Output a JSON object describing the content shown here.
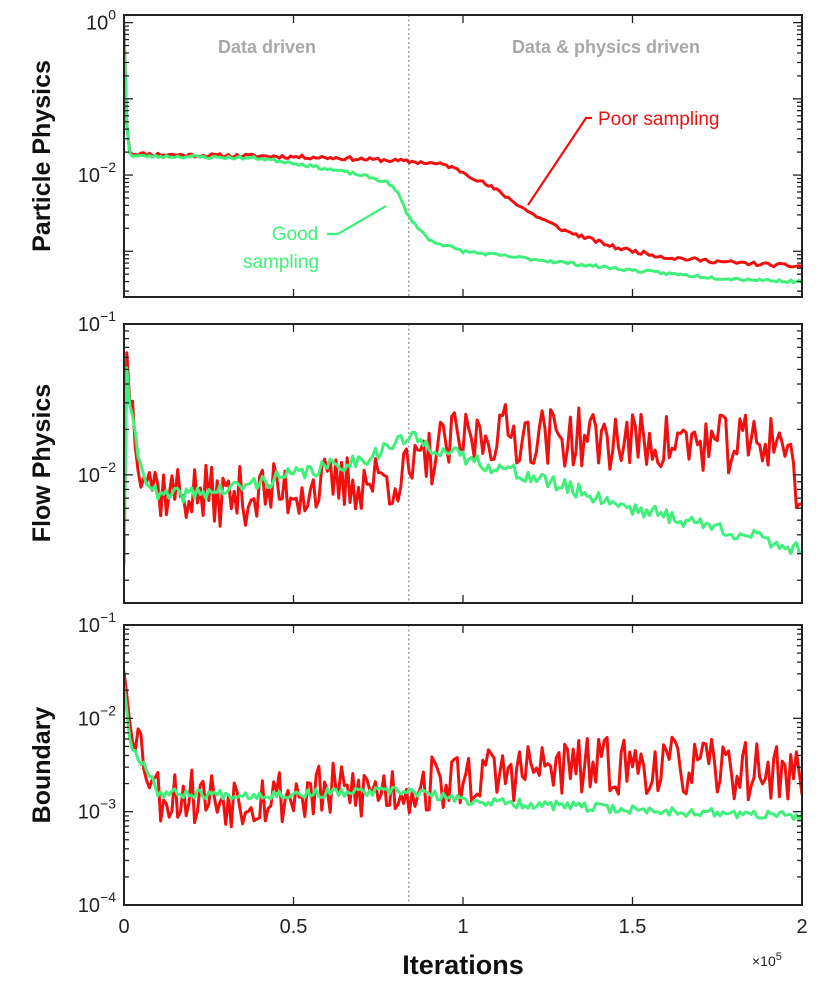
{
  "chart_data": {
    "type": "line",
    "shared_x": {
      "label": "Iterations",
      "multiplier": "×10",
      "multiplier_exp": "5",
      "range": [
        0,
        2
      ],
      "ticks": [
        {
          "v": 0,
          "label": "0"
        },
        {
          "v": 0.5,
          "label": "0.5"
        },
        {
          "v": 1,
          "label": "1"
        },
        {
          "v": 1.5,
          "label": "1.5"
        },
        {
          "v": 2,
          "label": "2"
        }
      ]
    },
    "phase_boundary_x": 0.84,
    "phase_labels": [
      "Data driven",
      "Data & physics driven"
    ],
    "series_colors": {
      "poor": "#f01010",
      "good": "#3ff07a"
    },
    "annotations": {
      "poor_label": "Poor sampling",
      "good_label_1": "Good",
      "good_label_2": "sampling"
    },
    "panels": [
      {
        "ylabel": "Particle Physics",
        "scale": "log",
        "ylim_exp": [
          -3.6,
          0.1
        ],
        "yticks": [
          {
            "exp": 0,
            "base": "10",
            "sup": "0"
          },
          {
            "exp": -2,
            "base": "10",
            "sup": "−2"
          }
        ],
        "series": [
          {
            "name": "Poor sampling",
            "key": "poor",
            "seed": 11,
            "noise": 0.025,
            "knots": [
              [
                0,
                -0.05
              ],
              [
                0.003,
                -0.5
              ],
              [
                0.01,
                -1.6
              ],
              [
                0.02,
                -1.72
              ],
              [
                0.2,
                -1.74
              ],
              [
                0.4,
                -1.75
              ],
              [
                0.5,
                -1.76
              ],
              [
                0.6,
                -1.77
              ],
              [
                0.7,
                -1.79
              ],
              [
                0.8,
                -1.81
              ],
              [
                0.9,
                -1.84
              ],
              [
                0.95,
                -1.87
              ],
              [
                1.0,
                -1.96
              ],
              [
                1.1,
                -2.2
              ],
              [
                1.2,
                -2.5
              ],
              [
                1.3,
                -2.73
              ],
              [
                1.45,
                -2.95
              ],
              [
                1.6,
                -3.08
              ],
              [
                1.8,
                -3.15
              ],
              [
                2.0,
                -3.2
              ]
            ]
          },
          {
            "name": "Good sampling",
            "key": "good",
            "seed": 23,
            "noise": 0.02,
            "knots": [
              [
                0,
                -0.05
              ],
              [
                0.003,
                -0.5
              ],
              [
                0.01,
                -1.6
              ],
              [
                0.02,
                -1.75
              ],
              [
                0.2,
                -1.76
              ],
              [
                0.4,
                -1.78
              ],
              [
                0.5,
                -1.84
              ],
              [
                0.6,
                -1.92
              ],
              [
                0.7,
                -2.0
              ],
              [
                0.78,
                -2.1
              ],
              [
                0.81,
                -2.25
              ],
              [
                0.84,
                -2.55
              ],
              [
                0.9,
                -2.85
              ],
              [
                1.0,
                -3.0
              ],
              [
                1.2,
                -3.1
              ],
              [
                1.5,
                -3.25
              ],
              [
                1.75,
                -3.35
              ],
              [
                2.0,
                -3.4
              ]
            ]
          }
        ]
      },
      {
        "ylabel": "Flow Physics",
        "scale": "log",
        "ylim_exp": [
          -2.85,
          -1.0
        ],
        "yticks": [
          {
            "exp": -1,
            "base": "10",
            "sup": "−1"
          },
          {
            "exp": -2,
            "base": "10",
            "sup": "−2"
          }
        ],
        "series": [
          {
            "name": "Poor sampling",
            "key": "poor",
            "seed": 37,
            "noise": 0.2,
            "knots": [
              [
                0,
                -2.6
              ],
              [
                0.003,
                -1.05
              ],
              [
                0.02,
                -1.5
              ],
              [
                0.05,
                -1.9
              ],
              [
                0.1,
                -2.1
              ],
              [
                0.3,
                -2.15
              ],
              [
                0.5,
                -2.1
              ],
              [
                0.7,
                -2.05
              ],
              [
                0.84,
                -2.0
              ],
              [
                0.95,
                -1.8
              ],
              [
                1.1,
                -1.72
              ],
              [
                1.5,
                -1.78
              ],
              [
                1.8,
                -1.8
              ],
              [
                1.95,
                -1.75
              ],
              [
                2.0,
                -2.3
              ]
            ]
          },
          {
            "name": "Good sampling",
            "key": "good",
            "seed": 41,
            "noise": 0.05,
            "knots": [
              [
                0,
                -2.6
              ],
              [
                0.003,
                -1.15
              ],
              [
                0.02,
                -1.6
              ],
              [
                0.05,
                -1.95
              ],
              [
                0.1,
                -2.15
              ],
              [
                0.3,
                -2.1
              ],
              [
                0.5,
                -2.0
              ],
              [
                0.7,
                -1.9
              ],
              [
                0.84,
                -1.75
              ],
              [
                0.95,
                -1.85
              ],
              [
                1.1,
                -1.95
              ],
              [
                1.3,
                -2.08
              ],
              [
                1.5,
                -2.22
              ],
              [
                1.75,
                -2.35
              ],
              [
                2.0,
                -2.5
              ]
            ]
          }
        ]
      },
      {
        "ylabel": "Boundary",
        "scale": "log",
        "ylim_exp": [
          -4.0,
          -1.0
        ],
        "yticks": [
          {
            "exp": -1,
            "base": "10",
            "sup": "−1"
          },
          {
            "exp": -2,
            "base": "10",
            "sup": "−2"
          },
          {
            "exp": -3,
            "base": "10",
            "sup": "−3"
          },
          {
            "exp": -4,
            "base": "10",
            "sup": "−4"
          }
        ],
        "series": [
          {
            "name": "Poor sampling",
            "key": "poor",
            "seed": 53,
            "noise": 0.32,
            "knots": [
              [
                0,
                -1.5
              ],
              [
                0.01,
                -1.8
              ],
              [
                0.05,
                -2.3
              ],
              [
                0.1,
                -2.8
              ],
              [
                0.3,
                -2.85
              ],
              [
                0.6,
                -2.8
              ],
              [
                0.84,
                -2.75
              ],
              [
                1.0,
                -2.65
              ],
              [
                1.2,
                -2.55
              ],
              [
                1.5,
                -2.5
              ],
              [
                1.8,
                -2.55
              ],
              [
                2.0,
                -2.6
              ]
            ]
          },
          {
            "name": "Good sampling",
            "key": "good",
            "seed": 67,
            "noise": 0.05,
            "knots": [
              [
                0,
                -1.65
              ],
              [
                0.02,
                -2.3
              ],
              [
                0.08,
                -2.6
              ],
              [
                0.1,
                -2.8
              ],
              [
                0.4,
                -2.82
              ],
              [
                0.84,
                -2.78
              ],
              [
                1.0,
                -2.88
              ],
              [
                1.5,
                -2.98
              ],
              [
                2.0,
                -3.05
              ]
            ]
          }
        ]
      }
    ]
  }
}
